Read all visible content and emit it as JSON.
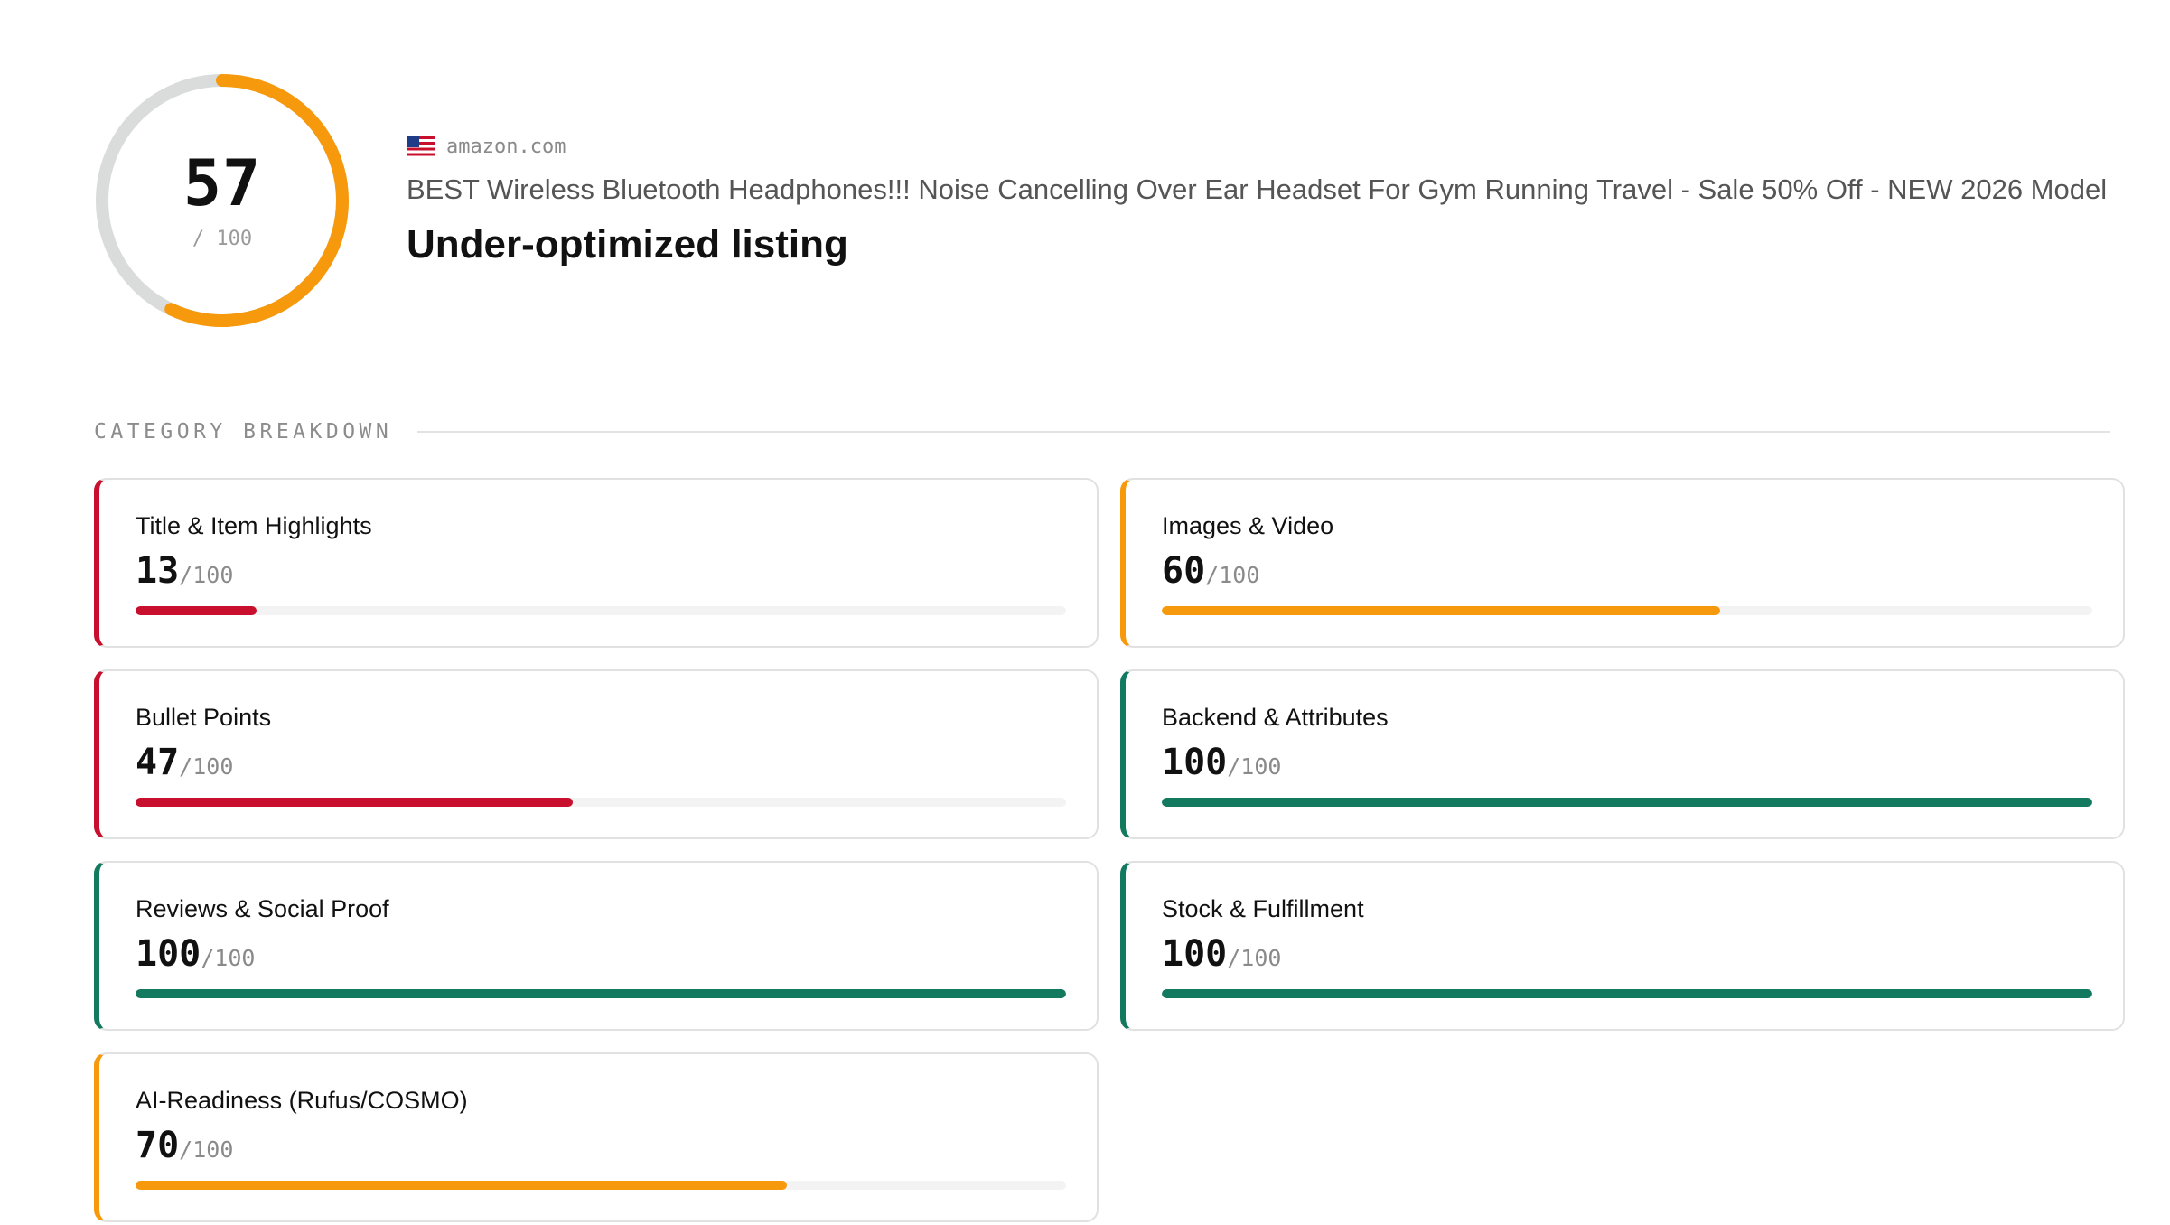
{
  "overall": {
    "score": "57",
    "max_label": "/ 100",
    "fraction": 0.57,
    "ring_color": "#f7990c",
    "track_color": "#d9dcdb"
  },
  "listing": {
    "flag_icon": "us-flag-icon",
    "marketplace": "amazon.com",
    "title": "BEST Wireless Bluetooth Headphones!!! Noise Cancelling Over Ear Headset For Gym Running Travel - Sale 50% Off - NEW 2026 Model",
    "verdict": "Under-optimized listing"
  },
  "breakdown": {
    "label": "CATEGORY BREAKDOWN",
    "categories": [
      {
        "name": "Title & Item Highlights",
        "score": 13,
        "score_label": "13",
        "max_label": "/100",
        "color": "#c8102e"
      },
      {
        "name": "Images & Video",
        "score": 60,
        "score_label": "60",
        "max_label": "/100",
        "color": "#f7990c"
      },
      {
        "name": "Bullet Points",
        "score": 47,
        "score_label": "47",
        "max_label": "/100",
        "color": "#c8102e"
      },
      {
        "name": "Backend & Attributes",
        "score": 100,
        "score_label": "100",
        "max_label": "/100",
        "color": "#137a60"
      },
      {
        "name": "Reviews & Social Proof",
        "score": 100,
        "score_label": "100",
        "max_label": "/100",
        "color": "#137a60"
      },
      {
        "name": "Stock & Fulfillment",
        "score": 100,
        "score_label": "100",
        "max_label": "/100",
        "color": "#137a60"
      },
      {
        "name": "AI-Readiness (Rufus/COSMO)",
        "score": 70,
        "score_label": "70",
        "max_label": "/100",
        "color": "#f7990c"
      }
    ]
  }
}
